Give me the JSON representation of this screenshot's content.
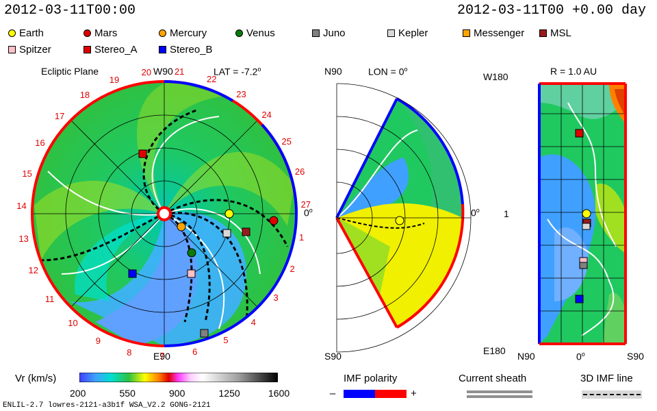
{
  "header": {
    "left_time": "2012-03-11T00:00",
    "right_time": "2012-03-11T00 +0.00 day"
  },
  "legend": [
    {
      "name": "Earth",
      "color": "#ffff00",
      "shape": "circle"
    },
    {
      "name": "Mars",
      "color": "#e00000",
      "shape": "circle"
    },
    {
      "name": "Mercury",
      "color": "#ffa500",
      "shape": "circle"
    },
    {
      "name": "Venus",
      "color": "#0a7a0a",
      "shape": "circle"
    },
    {
      "name": "Juno",
      "color": "#808080",
      "shape": "square"
    },
    {
      "name": "Kepler",
      "color": "#d8d8d8",
      "shape": "square"
    },
    {
      "name": "Messenger",
      "color": "#ffa500",
      "shape": "square"
    },
    {
      "name": "MSL",
      "color": "#9a1a1a",
      "shape": "square"
    },
    {
      "name": "Spitzer",
      "color": "#ffc0c8",
      "shape": "square"
    },
    {
      "name": "Stereo_A",
      "color": "#e00000",
      "shape": "square"
    },
    {
      "name": "Stereo_B",
      "color": "#0000ff",
      "shape": "square"
    }
  ],
  "ecliptic": {
    "title": "Ecliptic Plane",
    "top_label": "W90",
    "lat_label": "LAT = -7.2",
    "lat_sup": "o",
    "right_label": "0",
    "right_sup": "o",
    "bottom_label": "E90",
    "rotation_numbers": [
      "20",
      "21",
      "22",
      "23",
      "24",
      "25",
      "26",
      "27",
      "1",
      "2",
      "3",
      "4",
      "5",
      "6",
      "7",
      "8",
      "9",
      "10",
      "11",
      "12",
      "13",
      "14",
      "15",
      "16",
      "17",
      "18",
      "19"
    ]
  },
  "meridional": {
    "top_label": "N90",
    "lon_label": "LON = 0",
    "lon_sup": "o",
    "right_label": "0",
    "right_sup": "o",
    "bottom_label": "S90"
  },
  "map": {
    "title": "R = 1.0 AU",
    "y_top": "W180",
    "y_mid": "1",
    "y_bottom": "E180",
    "x_left": "N90",
    "x_mid": "0",
    "x_mid_sup": "o",
    "x_right": "S90"
  },
  "colorbar": {
    "label": "Vr (km/s)",
    "ticks": [
      "200",
      "550",
      "900",
      "1250",
      "1600"
    ]
  },
  "imf": {
    "title": "IMF polarity",
    "minus": "–",
    "plus": "+"
  },
  "current_sheath": {
    "title": "Current sheath"
  },
  "imf3d": {
    "title": "3D IMF line"
  },
  "footer": {
    "text": "ENLIL-2.7 lowres-2121-a3b1f WSA_V2.2 GONG-2121"
  },
  "colors": {
    "positive_polarity": "#ff0000",
    "negative_polarity": "#0000ff",
    "slow_wind": "#00d080",
    "fast_wind": "#ffff00"
  }
}
